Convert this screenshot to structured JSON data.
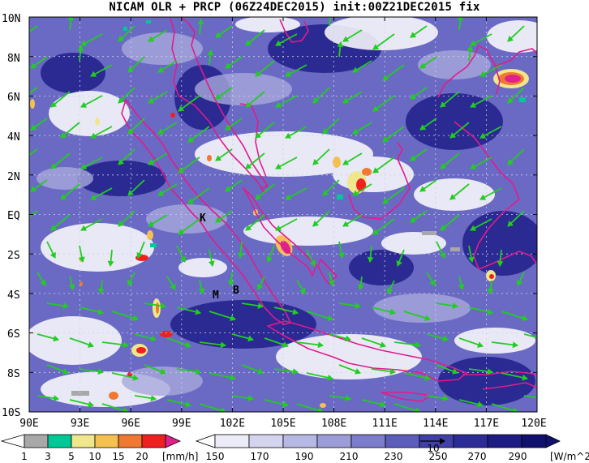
{
  "title": "NICAM OLR + PRCP (06Z24DEC2015) init:00Z21DEC2015 fix",
  "lat_labels": [
    "10N",
    "8N",
    "6N",
    "4N",
    "2N",
    "EQ",
    "2S",
    "4S",
    "6S",
    "8S",
    "10S"
  ],
  "lon_labels": [
    "90E",
    "93E",
    "96E",
    "99E",
    "102E",
    "105E",
    "108E",
    "111E",
    "114E",
    "117E",
    "120E"
  ],
  "place_labels": [
    "K",
    "M",
    "B"
  ],
  "precip_scale": {
    "ticks": [
      "1",
      "3",
      "5",
      "10",
      "15",
      "20"
    ],
    "unit": "[mm/h]",
    "colors": [
      "#a8a8a8",
      "#00c896",
      "#f0e68c",
      "#f5c050",
      "#f07830",
      "#f02020",
      "#e0208c"
    ]
  },
  "olr_scale": {
    "ticks": [
      "150",
      "170",
      "190",
      "210",
      "230",
      "250",
      "270",
      "290"
    ],
    "unit": "[W/m^2]",
    "colors": [
      "#ffffff",
      "#ececf8",
      "#d4d4ef",
      "#b8b8e4",
      "#9c9cd8",
      "#7c7ccc",
      "#5c5cbc",
      "#4040a8",
      "#2c2c98",
      "#1c1c84",
      "#10106e"
    ]
  },
  "vector_ref": "10",
  "colors": {
    "coastline": "#e01c8c",
    "wind": "#22cc22"
  }
}
